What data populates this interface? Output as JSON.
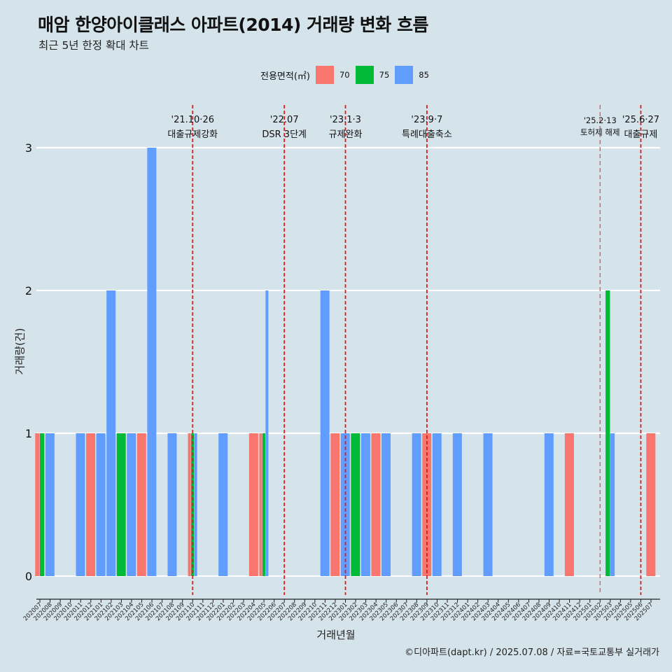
{
  "title": "매암 한양아이클래스 아파트(2014) 거래량 변화 흐름",
  "subtitle": "최근 5년 한정 확대 차트",
  "caption": "©디아파트(dapt.kr) / 2025.07.08 / 자료=국토교통부 실거래가",
  "legend": {
    "title": "전용면적(㎡)",
    "items": [
      {
        "label": "70",
        "color": "#F8766D"
      },
      {
        "label": "75",
        "color": "#00BA38"
      },
      {
        "label": "85",
        "color": "#619CFF"
      }
    ]
  },
  "chart_data": {
    "type": "bar",
    "xlabel": "거래년월",
    "ylabel": "거래량(건)",
    "ylim": [
      0,
      3
    ],
    "yticks": [
      0,
      1,
      2,
      3
    ],
    "grid": "horizontal major lines",
    "legend_position": "top",
    "categories": [
      "202007",
      "202008",
      "202009",
      "202010",
      "202011",
      "202012",
      "202101",
      "202102",
      "202103",
      "202104",
      "202105",
      "202106",
      "202107",
      "202108",
      "202109",
      "202110",
      "202111",
      "202112",
      "202201",
      "202202",
      "202203",
      "202204",
      "202205",
      "202206",
      "202207",
      "202208",
      "202209",
      "202210",
      "202211",
      "202212",
      "202301",
      "202302",
      "202303",
      "202304",
      "202305",
      "202306",
      "202307",
      "202308",
      "202309",
      "202310",
      "202311",
      "202312",
      "202401",
      "202402",
      "202403",
      "202404",
      "202405",
      "202406",
      "202407",
      "202408",
      "202409",
      "202410",
      "202411",
      "202412",
      "202501",
      "202502",
      "202503",
      "202504",
      "202505",
      "202506",
      "202507"
    ],
    "bars": [
      {
        "month": "202007",
        "area": "70",
        "count": 1
      },
      {
        "month": "202007",
        "area": "75",
        "count": 1
      },
      {
        "month": "202008",
        "area": "85",
        "count": 1
      },
      {
        "month": "202011",
        "area": "85",
        "count": 1
      },
      {
        "month": "202012",
        "area": "70",
        "count": 1
      },
      {
        "month": "202101",
        "area": "85",
        "count": 1
      },
      {
        "month": "202102",
        "area": "85",
        "count": 2
      },
      {
        "month": "202103",
        "area": "75",
        "count": 1
      },
      {
        "month": "202104",
        "area": "85",
        "count": 1
      },
      {
        "month": "202105",
        "area": "70",
        "count": 1
      },
      {
        "month": "202106",
        "area": "85",
        "count": 3
      },
      {
        "month": "202108",
        "area": "85",
        "count": 1
      },
      {
        "month": "202110",
        "area": "70",
        "count": 1
      },
      {
        "month": "202110",
        "area": "75",
        "count": 1
      },
      {
        "month": "202110",
        "area": "85",
        "count": 1
      },
      {
        "month": "202201",
        "area": "85",
        "count": 1
      },
      {
        "month": "202204",
        "area": "70",
        "count": 1
      },
      {
        "month": "202205",
        "area": "70",
        "count": 1
      },
      {
        "month": "202205",
        "area": "75",
        "count": 1
      },
      {
        "month": "202205",
        "area": "85",
        "count": 2
      },
      {
        "month": "202211",
        "area": "85",
        "count": 2
      },
      {
        "month": "202212",
        "area": "70",
        "count": 1
      },
      {
        "month": "202301",
        "area": "85",
        "count": 1
      },
      {
        "month": "202302",
        "area": "75",
        "count": 1
      },
      {
        "month": "202303",
        "area": "85",
        "count": 1
      },
      {
        "month": "202304",
        "area": "70",
        "count": 1
      },
      {
        "month": "202305",
        "area": "85",
        "count": 1
      },
      {
        "month": "202308",
        "area": "85",
        "count": 1
      },
      {
        "month": "202309",
        "area": "70",
        "count": 1
      },
      {
        "month": "202310",
        "area": "85",
        "count": 1
      },
      {
        "month": "202312",
        "area": "85",
        "count": 1
      },
      {
        "month": "202403",
        "area": "85",
        "count": 1
      },
      {
        "month": "202409",
        "area": "85",
        "count": 1
      },
      {
        "month": "202411",
        "area": "70",
        "count": 1
      },
      {
        "month": "202503",
        "area": "75",
        "count": 2
      },
      {
        "month": "202503",
        "area": "85",
        "count": 1
      },
      {
        "month": "202507",
        "area": "70",
        "count": 1
      }
    ],
    "annotations": [
      {
        "month": "202110",
        "date": "'21.10·26",
        "label": "대출규제강화",
        "size": "large"
      },
      {
        "month": "202207",
        "date": "'22.07",
        "label": "DSR 3단계",
        "size": "large"
      },
      {
        "month": "202301",
        "date": "'23.1·3",
        "label": "규제완화",
        "size": "large"
      },
      {
        "month": "202309",
        "date": "'23.9·7",
        "label": "특례대출축소",
        "size": "large"
      },
      {
        "month": "202502",
        "date": "'25.2·13",
        "label": "토허제 해제",
        "size": "small"
      },
      {
        "month": "202506",
        "date": "'25.6·27",
        "label": "대출규제",
        "size": "large"
      }
    ]
  }
}
